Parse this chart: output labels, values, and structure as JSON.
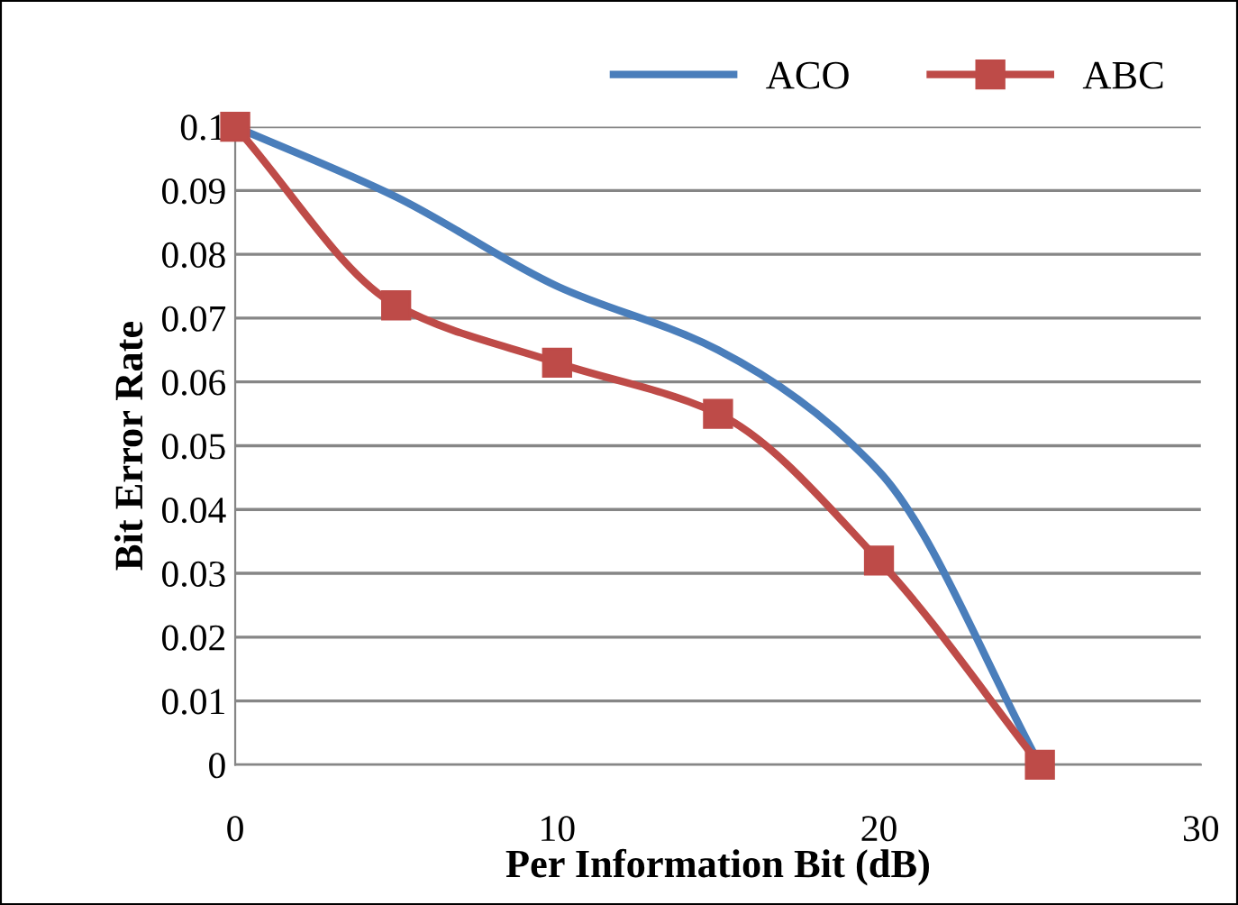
{
  "chart_data": {
    "type": "line",
    "xlabel": "Per Information Bit (dB)",
    "ylabel": "Bit Error Rate",
    "x": [
      0,
      5,
      10,
      15,
      20,
      25
    ],
    "series": [
      {
        "name": "ACO",
        "color": "#4a7ebb",
        "marker": "none",
        "values": [
          0.1,
          0.089,
          0.075,
          0.065,
          0.046,
          0
        ]
      },
      {
        "name": "ABC",
        "color": "#be4b48",
        "marker": "square",
        "values": [
          0.1,
          0.072,
          0.063,
          0.055,
          0.032,
          0
        ]
      }
    ],
    "xlim": [
      0,
      30
    ],
    "xticks": [
      0,
      10,
      20,
      30
    ],
    "ylim": [
      0,
      0.1
    ],
    "yticks": [
      {
        "value": 0,
        "label": "0"
      },
      0.01,
      0.02,
      0.03,
      0.04,
      0.05,
      0.06,
      0.07,
      0.08,
      0.09,
      0.1
    ],
    "grid": "y",
    "legend": "top right"
  }
}
